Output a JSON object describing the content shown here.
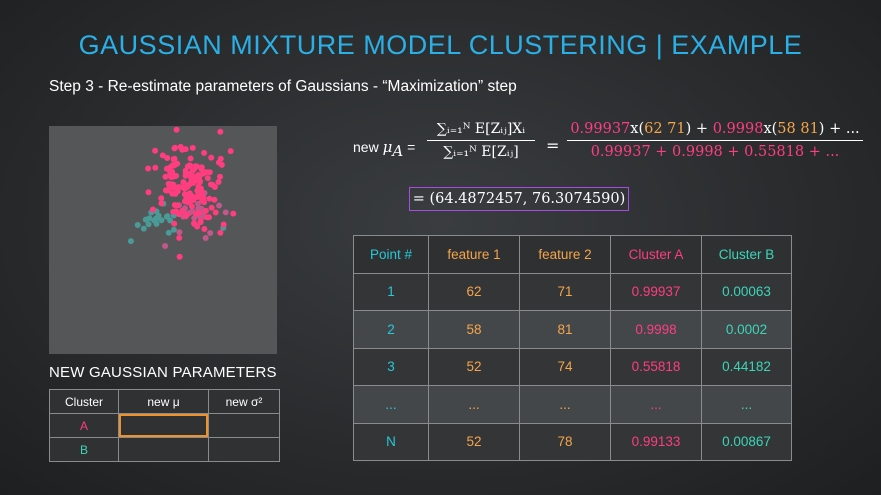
{
  "slide": {
    "title": "GAUSSIAN MIXTURE MODEL CLUSTERING | EXAMPLE",
    "subtitle": "Step 3 - Re-estimate parameters of Gaussians - “Maximization” step"
  },
  "formula": {
    "lhs_prefix": "new",
    "lhs_symbol": "μ",
    "lhs_sub": "A",
    "numerator": "∑ᵢ₌₁ᴺ E[Zᵢⱼ]Xᵢ",
    "denominator": "∑ᵢ₌₁ᴺ E[Zᵢⱼ]",
    "rhs_num_1": "0.99937",
    "rhs_num_x1": "x(",
    "rhs_num_v1": "62 71",
    "rhs_num_close1": ")",
    "rhs_plus1": " + ",
    "rhs_num_2": "0.9998",
    "rhs_num_x2": "x(",
    "rhs_num_v2": "58 81",
    "rhs_num_close2": ")",
    "rhs_tail": " + ...",
    "rhs_denominator": "0.99937 + 0.9998 + 0.55818 + ...",
    "result": "= (64.4872457, 76.3074590)"
  },
  "points_table": {
    "headers": [
      "Point #",
      "feature 1",
      "feature 2",
      "Cluster A",
      "Cluster B"
    ],
    "rows": [
      [
        "1",
        "62",
        "71",
        "0.99937",
        "0.00063"
      ],
      [
        "2",
        "58",
        "81",
        "0.9998",
        "0.0002"
      ],
      [
        "3",
        "52",
        "74",
        "0.55818",
        "0.44182"
      ],
      [
        "...",
        "...",
        "...",
        "...",
        "..."
      ],
      [
        "N",
        "52",
        "78",
        "0.99133",
        "0.00867"
      ]
    ]
  },
  "new_params": {
    "heading": "NEW GAUSSIAN PARAMETERS",
    "headers": [
      "Cluster",
      "new μ",
      "new σ²"
    ],
    "clusters": [
      "A",
      "B"
    ]
  },
  "colors": {
    "title": "#2ab0e6",
    "cluster_a": "#ff3d7f",
    "cluster_b": "#3bd6b8",
    "feature": "#f5a54a",
    "highlight_box": "#a64de0",
    "active_cell": "#f0922c"
  }
}
